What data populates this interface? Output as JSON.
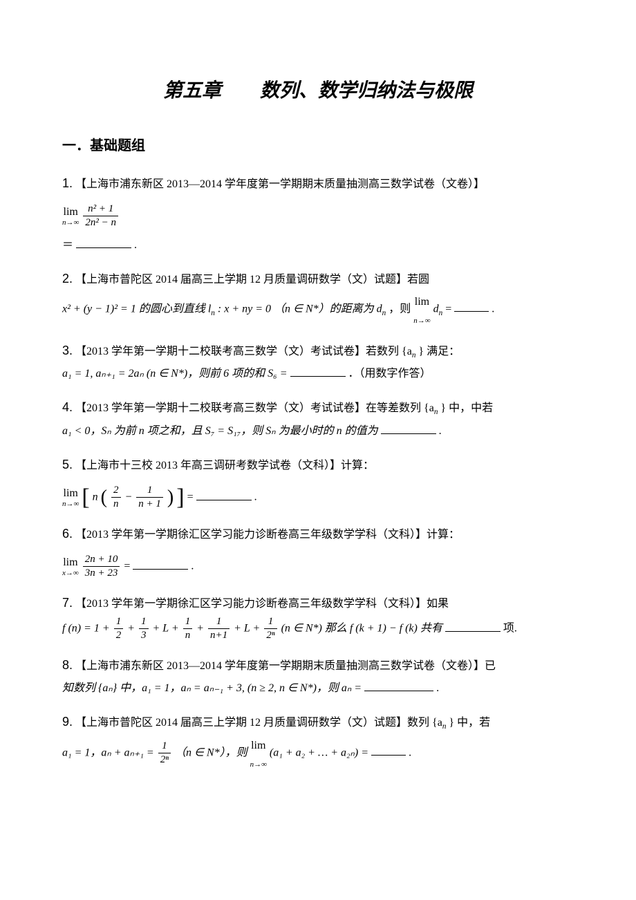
{
  "chapter_title": "第五章　　数列、数学归纳法与极限",
  "section_title": "一．基础题组",
  "q1": {
    "num": "1.",
    "src": "【上海市浦东新区 2013—2014 学年度第一学期期末质量抽测高三数学试卷（文卷）】",
    "lim_top": "lim",
    "lim_bot": "n→∞",
    "frac_num": "n² + 1",
    "frac_den": "2n² − n",
    "eq": "＝",
    "period": "."
  },
  "q2": {
    "num": "2.",
    "src": "【上海市普陀区 2014 届高三上学期 12 月质量调研数学（文）试题】若圆",
    "body_a": "x² + (y − 1)² = 1 的圆心到直线 l",
    "body_b": " : x + ny = 0 （n ∈ N*）的距离为 d",
    "body_c": "，则 ",
    "lim_top": "lim",
    "lim_bot": "n→∞",
    "body_d": "d",
    "tail": " = ",
    "period": "."
  },
  "q3": {
    "num": "3.",
    "src": "【2013 学年第一学期十二校联考高三数学（文）考试试卷】若数列 {a",
    "src_tail": "} 满足：",
    "body": "a₁ = 1, aₙ₊₁ = 2aₙ (n ∈ N*)，则前 6 项的和 S₆ = ",
    "tail": "．（用数字作答）"
  },
  "q4": {
    "num": "4.",
    "src": "【2013 学年第一学期十二校联考高三数学（文）考试试卷】在等差数列 {a",
    "src_tail": "} 中，中若",
    "body": "a₁ < 0，Sₙ 为前 n 项之和，且 S₇ = S₁₇，则 Sₙ 为最小时的 n 的值为 ",
    "period": "."
  },
  "q5": {
    "num": "5.",
    "src": "【上海市十三校 2013 年高三调研考数学试卷（文科）】计算：",
    "lim_top": "lim",
    "lim_bot": "n→∞",
    "inner_a": "n",
    "frac1_num": "2",
    "frac1_den": "n",
    "minus": " − ",
    "frac2_num": "1",
    "frac2_den": "n + 1",
    "eq": " = ",
    "period": "."
  },
  "q6": {
    "num": "6.",
    "src": "【2013 学年第一学期徐汇区学习能力诊断卷高三年级数学学科（文科）】计算：",
    "lim_top": "lim",
    "lim_bot": "x→∞",
    "frac_num": "2n + 10",
    "frac_den": "3n + 23",
    "eq": " = ",
    "period": "."
  },
  "q7": {
    "num": "7.",
    "src": "【2013 学年第一学期徐汇区学习能力诊断卷高三年级数学学科（文科）】如果",
    "body_a": "f (n) = 1 + ",
    "f_half_num": "1",
    "f_half_den": "2",
    "plus1": " + ",
    "f_third_num": "1",
    "f_third_den": "3",
    "dots1": " + L + ",
    "f_n_num": "1",
    "f_n_den": "n",
    "plus2": " + ",
    "f_n1_num": "1",
    "f_n1_den": "n+1",
    "dots2": " + L + ",
    "f_2n_num": "1",
    "f_2n_den": "2ⁿ",
    "cond": " (n ∈ N*) 那么 f (k + 1) − f (k) 共有 ",
    "tail": " 项."
  },
  "q8": {
    "num": "8.",
    "src": "【上海市浦东新区 2013—2014 学年度第一学期期末质量抽测高三数学试卷（文卷）】已",
    "body": "知数列 {aₙ} 中，a₁ = 1，aₙ = aₙ₋₁ + 3, (n ≥ 2, n ∈ N*)，则 aₙ = ",
    "period": "."
  },
  "q9": {
    "num": "9.",
    "src": "【上海市普陀区 2014 届高三上学期 12 月质量调研数学（文）试题】数列 {a",
    "src_tail": "} 中，若",
    "body_a": "a₁ = 1，aₙ + aₙ₊₁ = ",
    "frac_num": "1",
    "frac_den": "2ⁿ",
    "body_b": "（n ∈ N*），则 ",
    "lim_top": "lim",
    "lim_bot": "n→∞",
    "body_c": "(a₁ + a₂ + … + a₂ₙ) = ",
    "period": "."
  }
}
